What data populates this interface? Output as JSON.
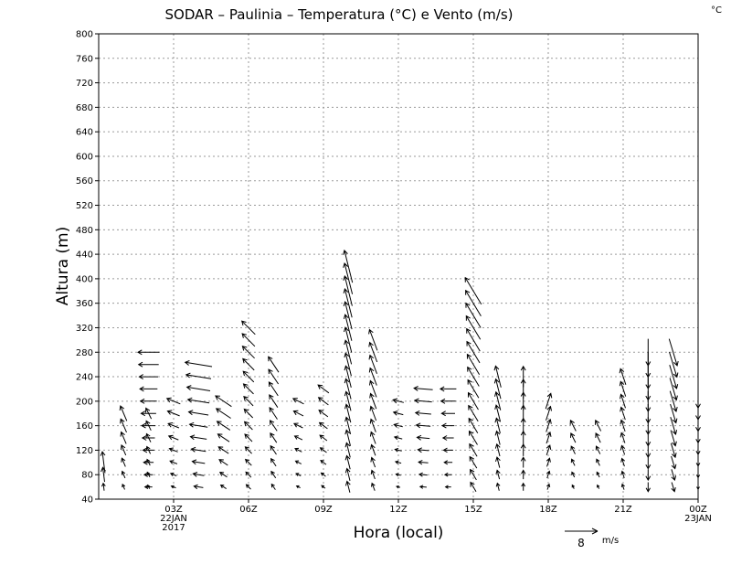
{
  "chart_data": {
    "type": "vector-wind-profile",
    "title": "SODAR – Paulinia – Temperatura (°C) e Vento (m/s)",
    "unit_corner": "°C",
    "xlabel": "Hora (local)",
    "ylabel": "Altura (m)",
    "ylim": [
      40,
      800
    ],
    "yticks": [
      40,
      80,
      120,
      160,
      200,
      240,
      280,
      320,
      360,
      400,
      440,
      480,
      520,
      560,
      600,
      640,
      680,
      720,
      760,
      800
    ],
    "xlim_hours": [
      0,
      24
    ],
    "xticks": [
      {
        "hour": 3,
        "lines": [
          "03Z",
          "22JAN",
          "2017"
        ]
      },
      {
        "hour": 6,
        "lines": [
          "06Z"
        ]
      },
      {
        "hour": 9,
        "lines": [
          "09Z"
        ]
      },
      {
        "hour": 12,
        "lines": [
          "12Z"
        ]
      },
      {
        "hour": 15,
        "lines": [
          "15Z"
        ]
      },
      {
        "hour": 18,
        "lines": [
          "18Z"
        ]
      },
      {
        "hour": 21,
        "lines": [
          "21Z"
        ]
      },
      {
        "hour": 24,
        "lines": [
          "00Z",
          "23JAN"
        ]
      }
    ],
    "grid": true,
    "reference_vector": {
      "speed": 8,
      "label_value": "8",
      "label_unit": "m/s"
    },
    "profiles": [
      {
        "hour": 0.2,
        "top": 100,
        "u": -0.5,
        "v": 4
      },
      {
        "hour": 1.0,
        "top": 180,
        "u": -1.2,
        "v": 2.8
      },
      {
        "hour": 2.0,
        "top": 180,
        "u": -1,
        "v": 2
      },
      {
        "hour": 2.0,
        "top": 280,
        "u": -4,
        "v": 0
      },
      {
        "hour": 3.0,
        "top": 200,
        "u": -2.5,
        "v": 1
      },
      {
        "hour": 4.0,
        "top": 260,
        "u": -5,
        "v": 0.8
      },
      {
        "hour": 5.0,
        "top": 200,
        "u": -3,
        "v": 2
      },
      {
        "hour": 6.0,
        "top": 320,
        "u": -2.5,
        "v": 2.5
      },
      {
        "hour": 7.0,
        "top": 270,
        "u": -2,
        "v": 3
      },
      {
        "hour": 8.0,
        "top": 200,
        "u": -2,
        "v": 1
      },
      {
        "hour": 9.0,
        "top": 220,
        "u": -2,
        "v": 1.5
      },
      {
        "hour": 10.0,
        "top": 420,
        "u": -1.5,
        "v": 6
      },
      {
        "hour": 11.0,
        "top": 310,
        "u": -1.5,
        "v": 4
      },
      {
        "hour": 12.0,
        "top": 200,
        "u": -2,
        "v": 0.5
      },
      {
        "hour": 13.0,
        "top": 220,
        "u": -3.5,
        "v": 0.3
      },
      {
        "hour": 14.0,
        "top": 220,
        "u": -3,
        "v": 0
      },
      {
        "hour": 15.0,
        "top": 380,
        "u": -3,
        "v": 5
      },
      {
        "hour": 16.0,
        "top": 240,
        "u": -1,
        "v": 4
      },
      {
        "hour": 17.0,
        "top": 250,
        "u": 0,
        "v": 4
      },
      {
        "hour": 18.0,
        "top": 210,
        "u": 1,
        "v": 3
      },
      {
        "hour": 19.0,
        "top": 160,
        "u": -1,
        "v": 2
      },
      {
        "hour": 20.0,
        "top": 160,
        "u": -1,
        "v": 2
      },
      {
        "hour": 21.0,
        "top": 240,
        "u": -1,
        "v": 3
      },
      {
        "hour": 22.0,
        "top": 280,
        "u": 0,
        "v": -5
      },
      {
        "hour": 23.0,
        "top": 280,
        "u": 1.5,
        "v": -5
      },
      {
        "hour": 24.0,
        "top": 200,
        "u": 0,
        "v": -2.5
      }
    ]
  }
}
